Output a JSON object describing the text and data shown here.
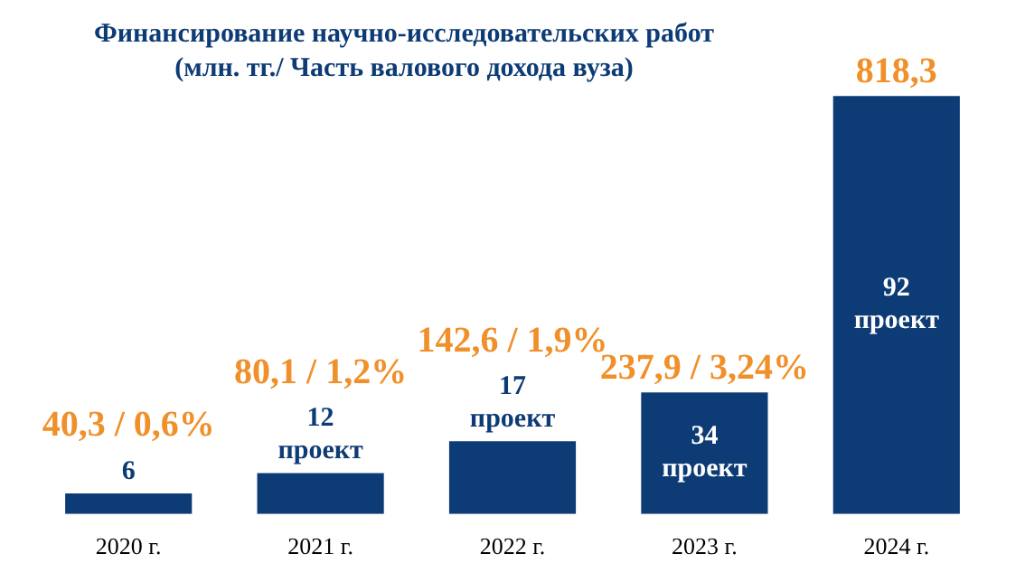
{
  "chart_data": {
    "type": "bar",
    "title": "Финансирование научно-исследовательских работ",
    "subtitle": "(млн. тг./ Часть валового дохода вуза)",
    "categories": [
      "2020 г.",
      "2021 г.",
      "2022 г.",
      "2023 г.",
      "2024 г."
    ],
    "values": [
      40.3,
      80.1,
      142.6,
      237.9,
      818.3
    ],
    "color": "#0d3b75",
    "value_labels": [
      "40,3 / 0,6%",
      "80,1 / 1,2%",
      "142,6 / 1,9%",
      "237,9 / 3,24%",
      "818,3"
    ],
    "annotations": [
      "6",
      "12 проект",
      "17 проект",
      "34 проект",
      "92 проект"
    ],
    "grid": false,
    "legend": false,
    "tick_labels": "x"
  }
}
